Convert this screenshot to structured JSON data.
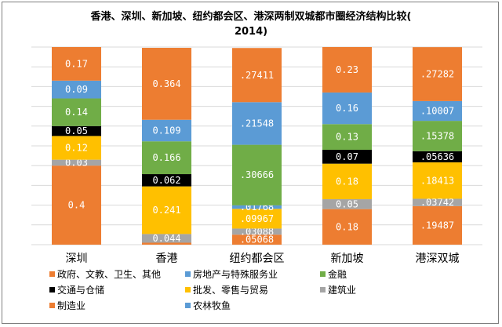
{
  "chart_data": {
    "type": "bar",
    "stacked": true,
    "title": "香港、深圳、新加坡、纽约都会区、港深两制双城都市圈经济结构比较(",
    "title_line2": "2014)",
    "categories": [
      "深圳",
      "香港",
      "纽约都会区",
      "新加坡",
      "港深双城"
    ],
    "series": [
      {
        "name": "制造业",
        "color": "#ed7d31",
        "values": [
          0.4,
          0.01,
          0.05068,
          0.18,
          0.19487
        ],
        "labels": [
          "0.4",
          "",
          ".05068",
          "0.18",
          ".19487"
        ]
      },
      {
        "name": "建筑业",
        "color": "#a5a5a5",
        "values": [
          0.03,
          0.044,
          0.03088,
          0.05,
          0.03742
        ],
        "labels": [
          "0.03",
          "0.044",
          ".03088",
          "0.05",
          ".03742"
        ]
      },
      {
        "name": "批发、零售与贸易",
        "color": "#ffc000",
        "values": [
          0.12,
          0.241,
          0.09967,
          0.18,
          0.18413
        ],
        "labels": [
          "0.12",
          "0.241",
          ".09967",
          "0.18",
          ".18413"
        ]
      },
      {
        "name": "交通与仓储",
        "color": "#000000",
        "values": [
          0.05,
          0.062,
          0,
          0.07,
          0.05636
        ],
        "labels": [
          "0.05",
          "0.062",
          "",
          "0.07",
          ".05636"
        ]
      },
      {
        "name": "农林牧鱼",
        "color": "#5b9bd5",
        "values": [
          0,
          0,
          0.01768,
          0,
          0
        ],
        "labels": [
          "",
          "",
          ".01768",
          "",
          ""
        ]
      },
      {
        "name": "金融",
        "color": "#70ad47",
        "values": [
          0.14,
          0.166,
          0.30666,
          0.13,
          0.15378
        ],
        "labels": [
          "0.14",
          "0.166",
          ".30666",
          "0.13",
          ".15378"
        ]
      },
      {
        "name": "房地产与特殊服务业",
        "color": "#5b9bd5",
        "values": [
          0.09,
          0.109,
          0.21548,
          0.16,
          0.10007
        ],
        "labels": [
          "0.09",
          "0.109",
          ".21548",
          "0.16",
          ".10007"
        ]
      },
      {
        "name": "政府、文教、卫生、其他",
        "color": "#ed7d31",
        "values": [
          0.17,
          0.364,
          0.27411,
          0.23,
          0.27282
        ],
        "labels": [
          "0.17",
          "0.364",
          ".27411",
          "0.23",
          ".27282"
        ]
      }
    ],
    "legend_order": [
      "政府、文教、卫生、其他",
      "房地产与特殊服务业",
      "金融",
      "交通与仓储",
      "批发、零售与贸易",
      "建筑业",
      "制造业",
      "农林牧鱼"
    ],
    "ylim": [
      0,
      1
    ],
    "grid": true,
    "legend_position": "bottom"
  }
}
